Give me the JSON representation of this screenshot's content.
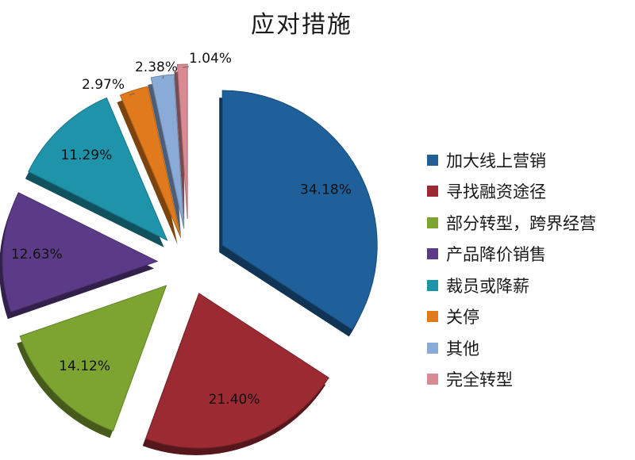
{
  "chart_data": {
    "type": "pie",
    "title": "应对措施",
    "categories": [
      "加大线上营销",
      "寻找融资途径",
      "部分转型，跨界经营",
      "产品降价销售",
      "裁员或降薪",
      "关停",
      "其他",
      "完全转型"
    ],
    "values": [
      34.18,
      21.4,
      14.12,
      12.63,
      11.29,
      2.97,
      2.38,
      1.04
    ],
    "value_labels": [
      "34.18%",
      "21.40%",
      "14.12%",
      "12.63%",
      "11.29%",
      "2.97%",
      "2.38%",
      "1.04%"
    ],
    "colors": [
      "#1f5f9a",
      "#9b2a33",
      "#7da431",
      "#5b3b88",
      "#1f93a9",
      "#e07a1c",
      "#8aaad8",
      "#d98a92"
    ],
    "legend_position": "right",
    "exploded": true
  }
}
